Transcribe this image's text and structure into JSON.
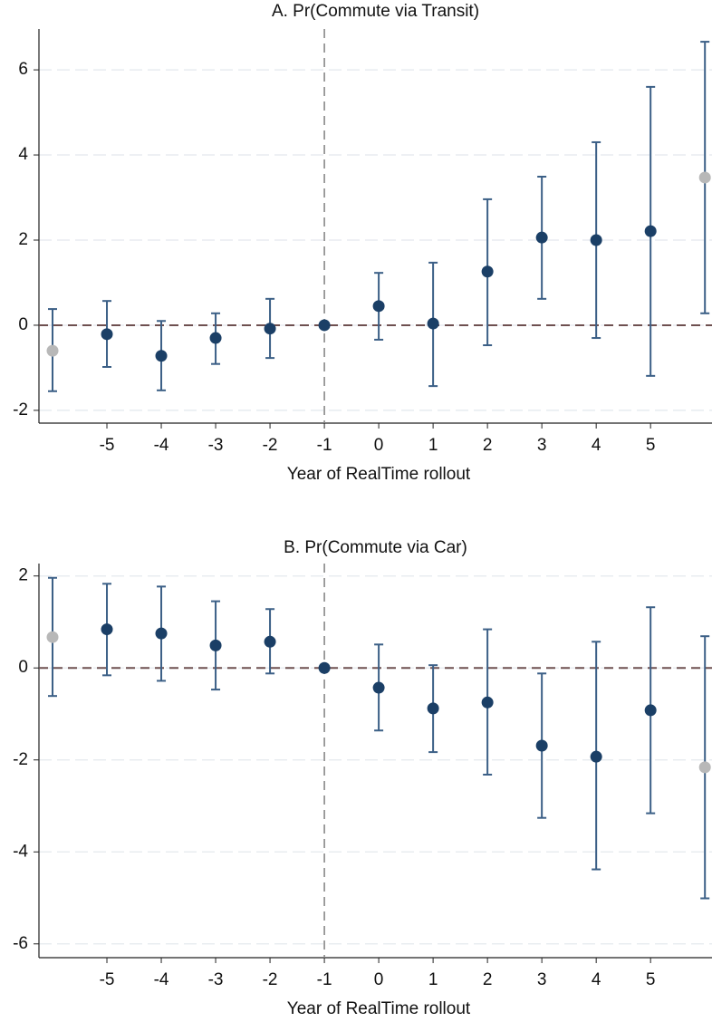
{
  "chart_data": [
    {
      "type": "scatter",
      "title": "A. Pr(Commute via Transit)",
      "xlabel": "Year of RealTime rollout",
      "x": [
        -6,
        -5,
        -4,
        -3,
        -2,
        -1,
        0,
        1,
        2,
        3,
        4,
        5,
        6
      ],
      "series": [
        {
          "color": "#1b3f66",
          "error_color": "#3b5f86",
          "values": [
            -0.6,
            -0.21,
            -0.72,
            -0.3,
            -0.08,
            0,
            0.45,
            0.04,
            1.26,
            2.06,
            2.0,
            2.21,
            3.47
          ],
          "lower": [
            -1.55,
            -0.98,
            -1.53,
            -0.91,
            -0.77,
            null,
            -0.34,
            -1.43,
            -0.47,
            0.62,
            -0.3,
            -1.19,
            0.28
          ],
          "upper": [
            0.38,
            0.57,
            0.1,
            0.28,
            0.62,
            null,
            1.23,
            1.47,
            2.96,
            3.49,
            4.3,
            5.6,
            6.66
          ],
          "marker_colors": [
            "#b8b8b8",
            "#1b3f66",
            "#1b3f66",
            "#1b3f66",
            "#1b3f66",
            "#1b3f66",
            "#1b3f66",
            "#1b3f66",
            "#1b3f66",
            "#1b3f66",
            "#1b3f66",
            "#1b3f66",
            "#b8b8b8"
          ]
        }
      ],
      "xlim": [
        -6.25,
        6.13
      ],
      "xticks": [
        -5,
        -4,
        -3,
        -2,
        -1,
        0,
        1,
        2,
        3,
        4,
        5
      ],
      "ylim": [
        -2.3,
        6.96
      ],
      "yticks": [
        -2,
        0,
        2,
        4,
        6
      ],
      "grid": true,
      "hline": 0,
      "vline": -1
    },
    {
      "type": "scatter",
      "title": "B. Pr(Commute via Car)",
      "xlabel": "Year of RealTime rollout",
      "x": [
        -6,
        -5,
        -4,
        -3,
        -2,
        -1,
        0,
        1,
        2,
        3,
        4,
        5,
        6
      ],
      "series": [
        {
          "color": "#1b3f66",
          "error_color": "#3b5f86",
          "values": [
            0.67,
            0.84,
            0.75,
            0.49,
            0.57,
            0,
            -0.43,
            -0.88,
            -0.75,
            -1.69,
            -1.93,
            -0.92,
            -2.16
          ],
          "lower": [
            -0.61,
            -0.16,
            -0.28,
            -0.47,
            -0.12,
            null,
            -1.36,
            -1.83,
            -2.32,
            -3.26,
            -4.38,
            -3.16,
            -5.01
          ],
          "upper": [
            1.96,
            1.83,
            1.77,
            1.45,
            1.28,
            null,
            0.51,
            0.06,
            0.84,
            -0.12,
            0.57,
            1.32,
            0.69
          ],
          "marker_colors": [
            "#b8b8b8",
            "#1b3f66",
            "#1b3f66",
            "#1b3f66",
            "#1b3f66",
            "#1b3f66",
            "#1b3f66",
            "#1b3f66",
            "#1b3f66",
            "#1b3f66",
            "#1b3f66",
            "#1b3f66",
            "#b8b8b8"
          ]
        }
      ],
      "xlim": [
        -6.25,
        6.13
      ],
      "xticks": [
        -5,
        -4,
        -3,
        -2,
        -1,
        0,
        1,
        2,
        3,
        4,
        5
      ],
      "ylim": [
        -6.3,
        2.27
      ],
      "yticks": [
        -6,
        -4,
        -2,
        0,
        2
      ],
      "grid": true,
      "hline": 0,
      "vline": -1
    }
  ]
}
